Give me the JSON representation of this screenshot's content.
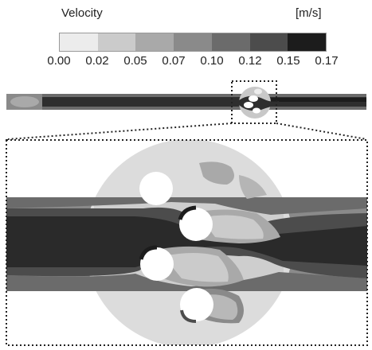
{
  "legend": {
    "title": "Velocity",
    "unit": "[m/s]",
    "ticks": [
      "0.00",
      "0.02",
      "0.05",
      "0.07",
      "0.10",
      "0.12",
      "0.15",
      "0.17"
    ],
    "colors": [
      "#ececec",
      "#cbcbcb",
      "#a9a9a9",
      "#8a8a8a",
      "#6b6b6b",
      "#4c4c4c",
      "#1c1c1c"
    ]
  }
}
